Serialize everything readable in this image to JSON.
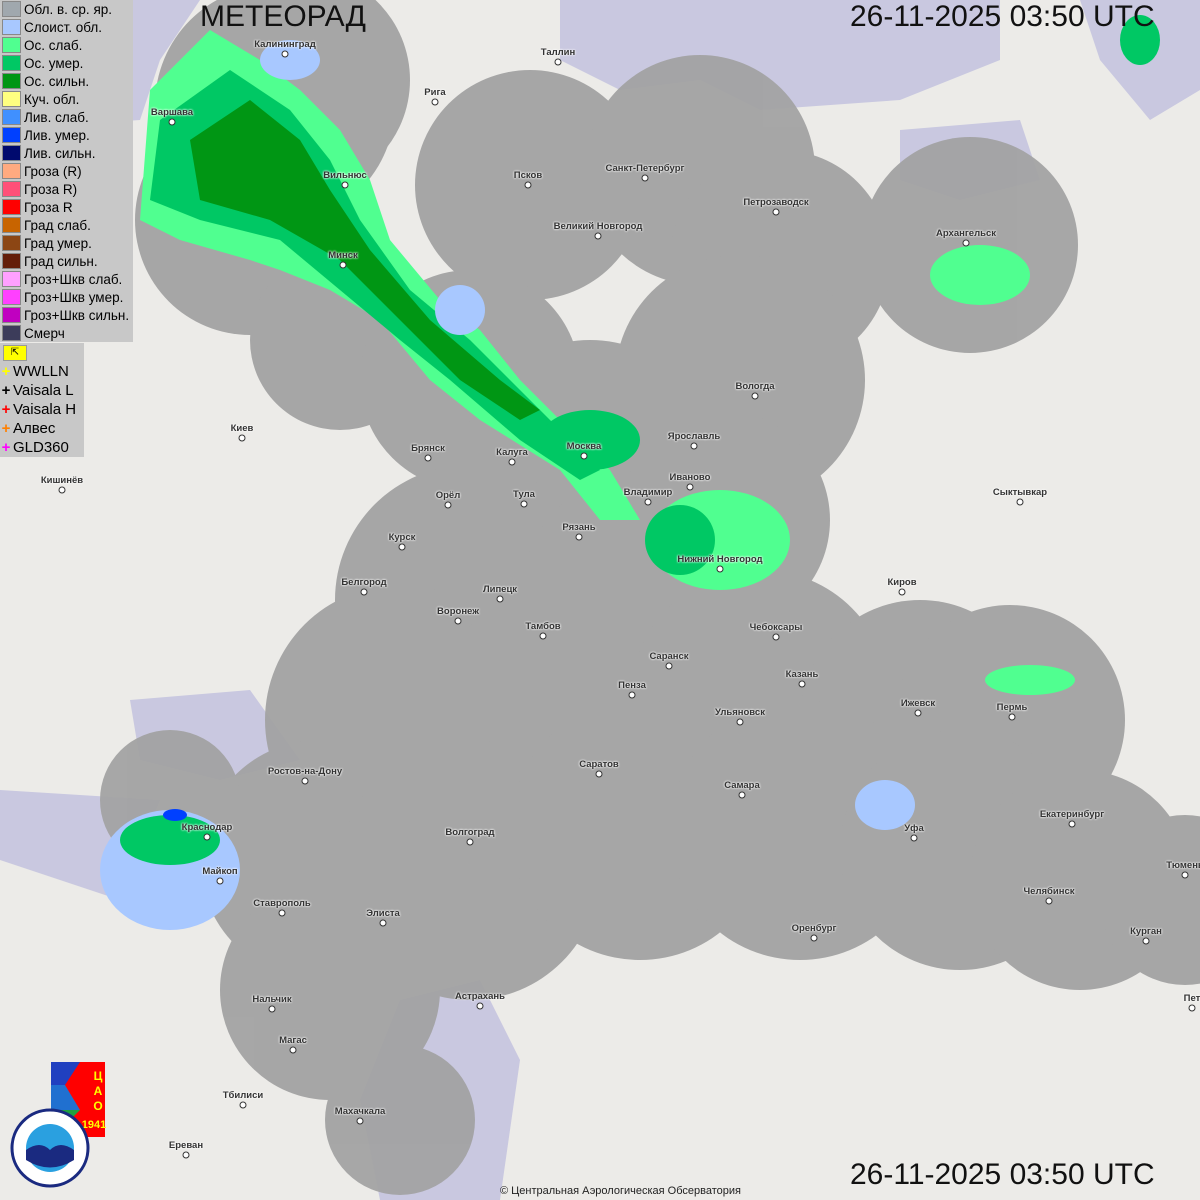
{
  "header": {
    "title": "МЕТЕОРАД",
    "timestamp": "26-11-2025  03:50 UTC"
  },
  "footer": {
    "timestamp": "26-11-2025  03:50 UTC",
    "copyright": "© Центральная Аэрологическая Обсерватория"
  },
  "legend": [
    {
      "label": "Обл. в. ср. яр.",
      "color": "#a0a8ae"
    },
    {
      "label": "Слоист. обл.",
      "color": "#a8c8ff"
    },
    {
      "label": "Ос. слаб.",
      "color": "#50ff90"
    },
    {
      "label": "Ос. умер.",
      "color": "#00c864"
    },
    {
      "label": "Ос. сильн.",
      "color": "#009614"
    },
    {
      "label": "Куч. обл.",
      "color": "#ffff80"
    },
    {
      "label": "Лив. слаб.",
      "color": "#4090ff"
    },
    {
      "label": "Лив. умер.",
      "color": "#0040ff"
    },
    {
      "label": "Лив. сильн.",
      "color": "#000a6e"
    },
    {
      "label": "Гроза (R)",
      "color": "#ffaa80"
    },
    {
      "label": "Гроза R)",
      "color": "#ff5078"
    },
    {
      "label": "Гроза R",
      "color": "#ff0000"
    },
    {
      "label": "Град слаб.",
      "color": "#c86400"
    },
    {
      "label": "Град умер.",
      "color": "#8c4614"
    },
    {
      "label": "Град сильн.",
      "color": "#641e0a"
    },
    {
      "label": "Гроз+Шкв слаб.",
      "color": "#ffa0ff"
    },
    {
      "label": "Гроз+Шкв умер.",
      "color": "#ff40ff"
    },
    {
      "label": "Гроз+Шкв сильн.",
      "color": "#c000c0"
    },
    {
      "label": "Смерч",
      "color": "#3c3c5a"
    }
  ],
  "lightning": {
    "toggle_icon": "arrow-corner-icon",
    "sources": [
      {
        "label": "WWLLN",
        "color": "#ffff00"
      },
      {
        "label": "Vaisala L",
        "color": "#000000"
      },
      {
        "label": "Vaisala H",
        "color": "#ff0000"
      },
      {
        "label": "Алвес",
        "color": "#ff8000"
      },
      {
        "label": "GLD360",
        "color": "#ff00ff"
      }
    ]
  },
  "logos": {
    "rosgidromet": "РОСГИДРОМЕТ ROSHYDROMET",
    "cao": "ЦАО 1941"
  },
  "cities": [
    {
      "name": "Калининград",
      "pos": [
        285,
        54
      ]
    },
    {
      "name": "Таллин",
      "pos": [
        558,
        62
      ]
    },
    {
      "name": "Рига",
      "pos": [
        435,
        102
      ]
    },
    {
      "name": "Варшава",
      "pos": [
        172,
        122
      ]
    },
    {
      "name": "Вильнюс",
      "pos": [
        345,
        185
      ]
    },
    {
      "name": "Псков",
      "pos": [
        528,
        185
      ]
    },
    {
      "name": "Санкт-Петербург",
      "pos": [
        645,
        178
      ]
    },
    {
      "name": "Петрозаводск",
      "pos": [
        776,
        212
      ]
    },
    {
      "name": "Великий Новгород",
      "pos": [
        598,
        236
      ]
    },
    {
      "name": "Архангельск",
      "pos": [
        966,
        243
      ]
    },
    {
      "name": "Минск",
      "pos": [
        343,
        265
      ]
    },
    {
      "name": "Вологда",
      "pos": [
        755,
        396
      ]
    },
    {
      "name": "Киев",
      "pos": [
        242,
        438
      ]
    },
    {
      "name": "Брянск",
      "pos": [
        428,
        458
      ]
    },
    {
      "name": "Москва",
      "pos": [
        584,
        456
      ]
    },
    {
      "name": "Ярославль",
      "pos": [
        694,
        446
      ]
    },
    {
      "name": "Калуга",
      "pos": [
        512,
        462
      ]
    },
    {
      "name": "Иваново",
      "pos": [
        690,
        487
      ]
    },
    {
      "name": "Владимир",
      "pos": [
        648,
        502
      ]
    },
    {
      "name": "Кишинёв",
      "pos": [
        62,
        490
      ]
    },
    {
      "name": "Орёл",
      "pos": [
        448,
        505
      ]
    },
    {
      "name": "Тула",
      "pos": [
        524,
        504
      ]
    },
    {
      "name": "Сыктывкар",
      "pos": [
        1020,
        502
      ]
    },
    {
      "name": "Рязань",
      "pos": [
        579,
        537
      ]
    },
    {
      "name": "Курск",
      "pos": [
        402,
        547
      ]
    },
    {
      "name": "Нижний Новгород",
      "pos": [
        720,
        569
      ]
    },
    {
      "name": "Белгород",
      "pos": [
        364,
        592
      ]
    },
    {
      "name": "Киров",
      "pos": [
        902,
        592
      ]
    },
    {
      "name": "Липецк",
      "pos": [
        500,
        599
      ]
    },
    {
      "name": "Воронеж",
      "pos": [
        458,
        621
      ]
    },
    {
      "name": "Тамбов",
      "pos": [
        543,
        636
      ]
    },
    {
      "name": "Чебоксары",
      "pos": [
        776,
        637
      ]
    },
    {
      "name": "Саранск",
      "pos": [
        669,
        666
      ]
    },
    {
      "name": "Казань",
      "pos": [
        802,
        684
      ]
    },
    {
      "name": "Пенза",
      "pos": [
        632,
        695
      ]
    },
    {
      "name": "Ижевск",
      "pos": [
        918,
        713
      ]
    },
    {
      "name": "Пермь",
      "pos": [
        1012,
        717
      ]
    },
    {
      "name": "Ульяновск",
      "pos": [
        740,
        722
      ]
    },
    {
      "name": "Ростов-на-Дону",
      "pos": [
        305,
        781
      ]
    },
    {
      "name": "Саратов",
      "pos": [
        599,
        774
      ]
    },
    {
      "name": "Самара",
      "pos": [
        742,
        795
      ]
    },
    {
      "name": "Екатеринбург",
      "pos": [
        1072,
        824
      ]
    },
    {
      "name": "Уфа",
      "pos": [
        914,
        838
      ]
    },
    {
      "name": "Краснодар",
      "pos": [
        207,
        837
      ]
    },
    {
      "name": "Волгоград",
      "pos": [
        470,
        842
      ]
    },
    {
      "name": "Тюмень",
      "pos": [
        1185,
        875
      ]
    },
    {
      "name": "Майкоп",
      "pos": [
        220,
        881
      ]
    },
    {
      "name": "Челябинск",
      "pos": [
        1049,
        901
      ]
    },
    {
      "name": "Ставрополь",
      "pos": [
        282,
        913
      ]
    },
    {
      "name": "Элиста",
      "pos": [
        383,
        923
      ]
    },
    {
      "name": "Оренбург",
      "pos": [
        814,
        938
      ]
    },
    {
      "name": "Курган",
      "pos": [
        1146,
        941
      ]
    },
    {
      "name": "Астрахань",
      "pos": [
        480,
        1006
      ]
    },
    {
      "name": "Пет",
      "pos": [
        1192,
        1008
      ]
    },
    {
      "name": "Нальчик",
      "pos": [
        272,
        1009
      ]
    },
    {
      "name": "Магас",
      "pos": [
        293,
        1050
      ]
    },
    {
      "name": "Тбилиси",
      "pos": [
        243,
        1105
      ]
    },
    {
      "name": "Махачкала",
      "pos": [
        360,
        1121
      ]
    },
    {
      "name": "Ереван",
      "pos": [
        186,
        1155
      ]
    }
  ]
}
